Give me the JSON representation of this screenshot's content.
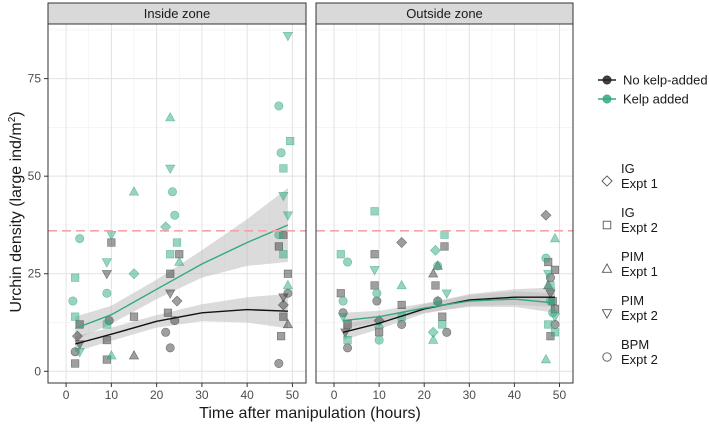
{
  "chart_data": {
    "type": "scatter",
    "xlabel": "Time after manipulation (hours)",
    "ylabel_main": "Urchin density (large ind/m",
    "ylabel_sup": "2",
    "ylabel_close": ")",
    "xlim": [
      -4,
      53
    ],
    "ylim": [
      -3,
      89
    ],
    "x_ticks": [
      0,
      10,
      20,
      30,
      40,
      50
    ],
    "y_ticks": [
      0,
      25,
      50,
      75
    ],
    "grid": true,
    "reference_line_y": 36,
    "colors": {
      "no_kelp": "#3f3f3f",
      "kelp": "#33a883",
      "reference": "#f4a3a3",
      "band": "#bdbdbd"
    },
    "panels": [
      {
        "label": "Inside zone",
        "curves": {
          "no_kelp": {
            "x": [
              2,
              10,
              20,
              30,
              40,
              49
            ],
            "y": [
              7,
              9.5,
              12.8,
              15,
              15.8,
              15.4
            ]
          },
          "kelp": {
            "x": [
              2,
              10,
              20,
              30,
              40,
              49
            ],
            "y": [
              11,
              14.5,
              21,
              27.5,
              33,
              37.5
            ]
          }
        },
        "bands": {
          "no_kelp": {
            "x": [
              2,
              10,
              20,
              30,
              40,
              49
            ],
            "lo": [
              5,
              7.8,
              11.2,
              12.8,
              12.5,
              11
            ],
            "hi": [
              9,
              11.2,
              14.4,
              17.2,
              19,
              19.8
            ]
          },
          "kelp": {
            "x": [
              2,
              10,
              20,
              30,
              40,
              49
            ],
            "lo": [
              8,
              12.2,
              18.5,
              24,
              27,
              28
            ],
            "hi": [
              14,
              16.8,
              23.5,
              31,
              39,
              47
            ]
          }
        },
        "points": {
          "no_kelp": {
            "x": [
              2,
              2,
              2.5,
              3,
              3,
              9,
              9,
              9.5,
              9,
              10,
              15,
              15,
              22,
              22.5,
              23,
              23,
              24,
              24.5,
              25,
              23,
              47,
              47.5,
              48,
              48,
              49,
              49,
              47,
              48,
              49,
              48
            ],
            "y": [
              2,
              5,
              9,
              12,
              7,
              3,
              8,
              13,
              25,
              33,
              4,
              14,
              10,
              15,
              20,
              25,
              13,
              18,
              30,
              6,
              2,
              9,
              14,
              19,
              25,
              20,
              32,
              35,
              12,
              17
            ],
            "shape": [
              "square",
              "circle",
              "diamond",
              "square",
              "triangle-down",
              "square",
              "square",
              "circle",
              "triangle-down",
              "square",
              "triangle",
              "square",
              "circle",
              "square",
              "triangle-down",
              "square",
              "circle",
              "diamond",
              "square",
              "circle",
              "circle",
              "square",
              "square",
              "triangle-down",
              "square",
              "circle",
              "square",
              "square",
              "triangle",
              "diamond"
            ]
          },
          "kelp": {
            "x": [
              1.5,
              2,
              2,
              3,
              3,
              9,
              9,
              9,
              10,
              10,
              15,
              15,
              22,
              23,
              23,
              23.5,
              24,
              24.5,
              25,
              23,
              47,
              47.5,
              48,
              48,
              49,
              49,
              49.5,
              48,
              49,
              47
            ],
            "y": [
              18,
              24,
              14,
              34,
              5,
              12,
              20,
              28,
              35,
              4,
              46,
              25,
              37,
              65,
              52,
              46,
              40,
              33,
              28,
              30,
              68,
              56,
              52,
              45,
              40,
              86,
              59,
              30,
              22,
              35
            ],
            "shape": [
              "circle",
              "square",
              "square",
              "circle",
              "triangle-down",
              "square",
              "circle",
              "triangle-down",
              "triangle-down",
              "triangle",
              "triangle",
              "diamond",
              "diamond",
              "triangle",
              "triangle-down",
              "circle",
              "circle",
              "square",
              "triangle",
              "square",
              "circle",
              "circle",
              "square",
              "triangle-down",
              "triangle-down",
              "triangle-down",
              "square",
              "square",
              "triangle",
              "circle"
            ]
          }
        }
      },
      {
        "label": "Outside zone",
        "curves": {
          "no_kelp": {
            "x": [
              2,
              10,
              20,
              30,
              40,
              49
            ],
            "y": [
              10,
              12.3,
              16,
              18.3,
              19,
              19
            ]
          },
          "kelp": {
            "x": [
              2,
              10,
              20,
              30,
              40,
              49
            ],
            "y": [
              13,
              14,
              16.2,
              18,
              18.5,
              17.5
            ]
          }
        },
        "bands": {
          "no_kelp": {
            "x": [
              2,
              10,
              20,
              30,
              40,
              49
            ],
            "lo": [
              8,
              10.8,
              14.8,
              16.8,
              17,
              16.5
            ],
            "hi": [
              12,
              13.8,
              17.2,
              19.8,
              21,
              21.5
            ]
          },
          "kelp": {
            "x": [
              2,
              10,
              20,
              30,
              40,
              49
            ],
            "lo": [
              11,
              12.5,
              15,
              16.5,
              16.5,
              15
            ],
            "hi": [
              15,
              15.5,
              17.4,
              19.5,
              20.5,
              20
            ]
          }
        },
        "points": {
          "no_kelp": {
            "x": [
              1.5,
              2,
              2.5,
              3,
              3,
              9,
              9,
              9.5,
              10,
              10,
              15,
              15,
              15,
              22,
              22.5,
              23,
              23,
              24,
              24.5,
              25,
              47,
              47.5,
              48,
              48,
              49,
              49,
              48,
              47.5,
              48.5,
              49
            ],
            "y": [
              20,
              15,
              10,
              12,
              6,
              30,
              22,
              18,
              10,
              13,
              33,
              17,
              12,
              25,
              22,
              27,
              18,
              14,
              32,
              10,
              40,
              28,
              24,
              20,
              16,
              12,
              9,
              22,
              18,
              26
            ],
            "shape": [
              "square",
              "circle",
              "triangle-down",
              "square",
              "circle",
              "square",
              "square",
              "circle",
              "square",
              "diamond",
              "diamond",
              "square",
              "circle",
              "triangle",
              "square",
              "triangle",
              "circle",
              "square",
              "square",
              "circle",
              "diamond",
              "square",
              "circle",
              "triangle-down",
              "square",
              "circle",
              "square",
              "triangle",
              "square",
              "square"
            ]
          },
          "kelp": {
            "x": [
              1.5,
              2,
              2,
              3,
              3,
              9,
              9,
              9.5,
              10,
              10,
              15,
              15,
              22,
              22.5,
              23,
              23,
              24,
              24.5,
              25,
              22,
              47,
              47.5,
              48,
              48,
              49,
              49,
              49,
              47,
              48.5,
              47.5
            ],
            "y": [
              30,
              18,
              14,
              28,
              8,
              41,
              26,
              20,
              12,
              8,
              22,
              14,
              10,
              31,
              27,
              18,
              12,
              35,
              20,
              8,
              29,
              25,
              22,
              18,
              14,
              10,
              34,
              3,
              15,
              12
            ],
            "shape": [
              "square",
              "circle",
              "triangle-down",
              "circle",
              "square",
              "square",
              "triangle-down",
              "circle",
              "triangle",
              "circle",
              "triangle",
              "square",
              "diamond",
              "diamond",
              "circle",
              "triangle",
              "square",
              "square",
              "triangle-down",
              "triangle",
              "circle",
              "triangle-down",
              "square",
              "circle",
              "triangle-down",
              "square",
              "triangle",
              "triangle",
              "circle",
              "square"
            ]
          }
        }
      }
    ],
    "legend": {
      "placement": "right",
      "series": [
        {
          "key": "no_kelp",
          "label": "No kelp-added"
        },
        {
          "key": "kelp",
          "label": "Kelp added"
        }
      ],
      "shapes": [
        {
          "shape": "diamond",
          "line1": "IG",
          "line2": "Expt 1"
        },
        {
          "shape": "square",
          "line1": "IG",
          "line2": "Expt 2"
        },
        {
          "shape": "triangle",
          "line1": "PIM",
          "line2": "Expt 1"
        },
        {
          "shape": "triangle-down",
          "line1": "PIM",
          "line2": "Expt 2"
        },
        {
          "shape": "circle",
          "line1": "BPM",
          "line2": "Expt 2"
        }
      ]
    }
  }
}
